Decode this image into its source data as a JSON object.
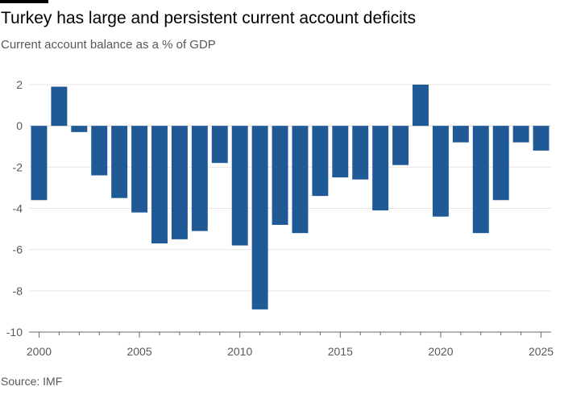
{
  "title": "Turkey has large and persistent current account deficits",
  "subtitle": "Current account balance as a % of GDP",
  "source": "Source: IMF",
  "colors": {
    "bar": "#1f5a96",
    "grid": "#e9e6e2",
    "baseline": "#6b6762",
    "text": "#5b5753"
  },
  "chart_data": {
    "type": "bar",
    "categories": [
      "2000",
      "2001",
      "2002",
      "2003",
      "2004",
      "2005",
      "2006",
      "2007",
      "2008",
      "2009",
      "2010",
      "2011",
      "2012",
      "2013",
      "2014",
      "2015",
      "2016",
      "2017",
      "2018",
      "2019",
      "2020",
      "2021",
      "2022",
      "2023",
      "2024",
      "2025"
    ],
    "values": [
      -3.6,
      1.9,
      -0.3,
      -2.4,
      -3.5,
      -4.2,
      -5.7,
      -5.5,
      -5.1,
      -1.8,
      -5.8,
      -8.9,
      -4.8,
      -5.2,
      -3.4,
      -2.5,
      -2.6,
      -4.1,
      -1.9,
      2.0,
      -4.4,
      -0.8,
      -5.2,
      -3.6,
      -0.8,
      -1.2
    ],
    "ylim": [
      -10,
      2
    ],
    "yticks": [
      2,
      0,
      -2,
      -4,
      -6,
      -8,
      -10
    ],
    "xtick_labels": [
      "2000",
      "2005",
      "2010",
      "2015",
      "2020",
      "2025"
    ],
    "grid": true,
    "xlabel": "",
    "ylabel": ""
  }
}
